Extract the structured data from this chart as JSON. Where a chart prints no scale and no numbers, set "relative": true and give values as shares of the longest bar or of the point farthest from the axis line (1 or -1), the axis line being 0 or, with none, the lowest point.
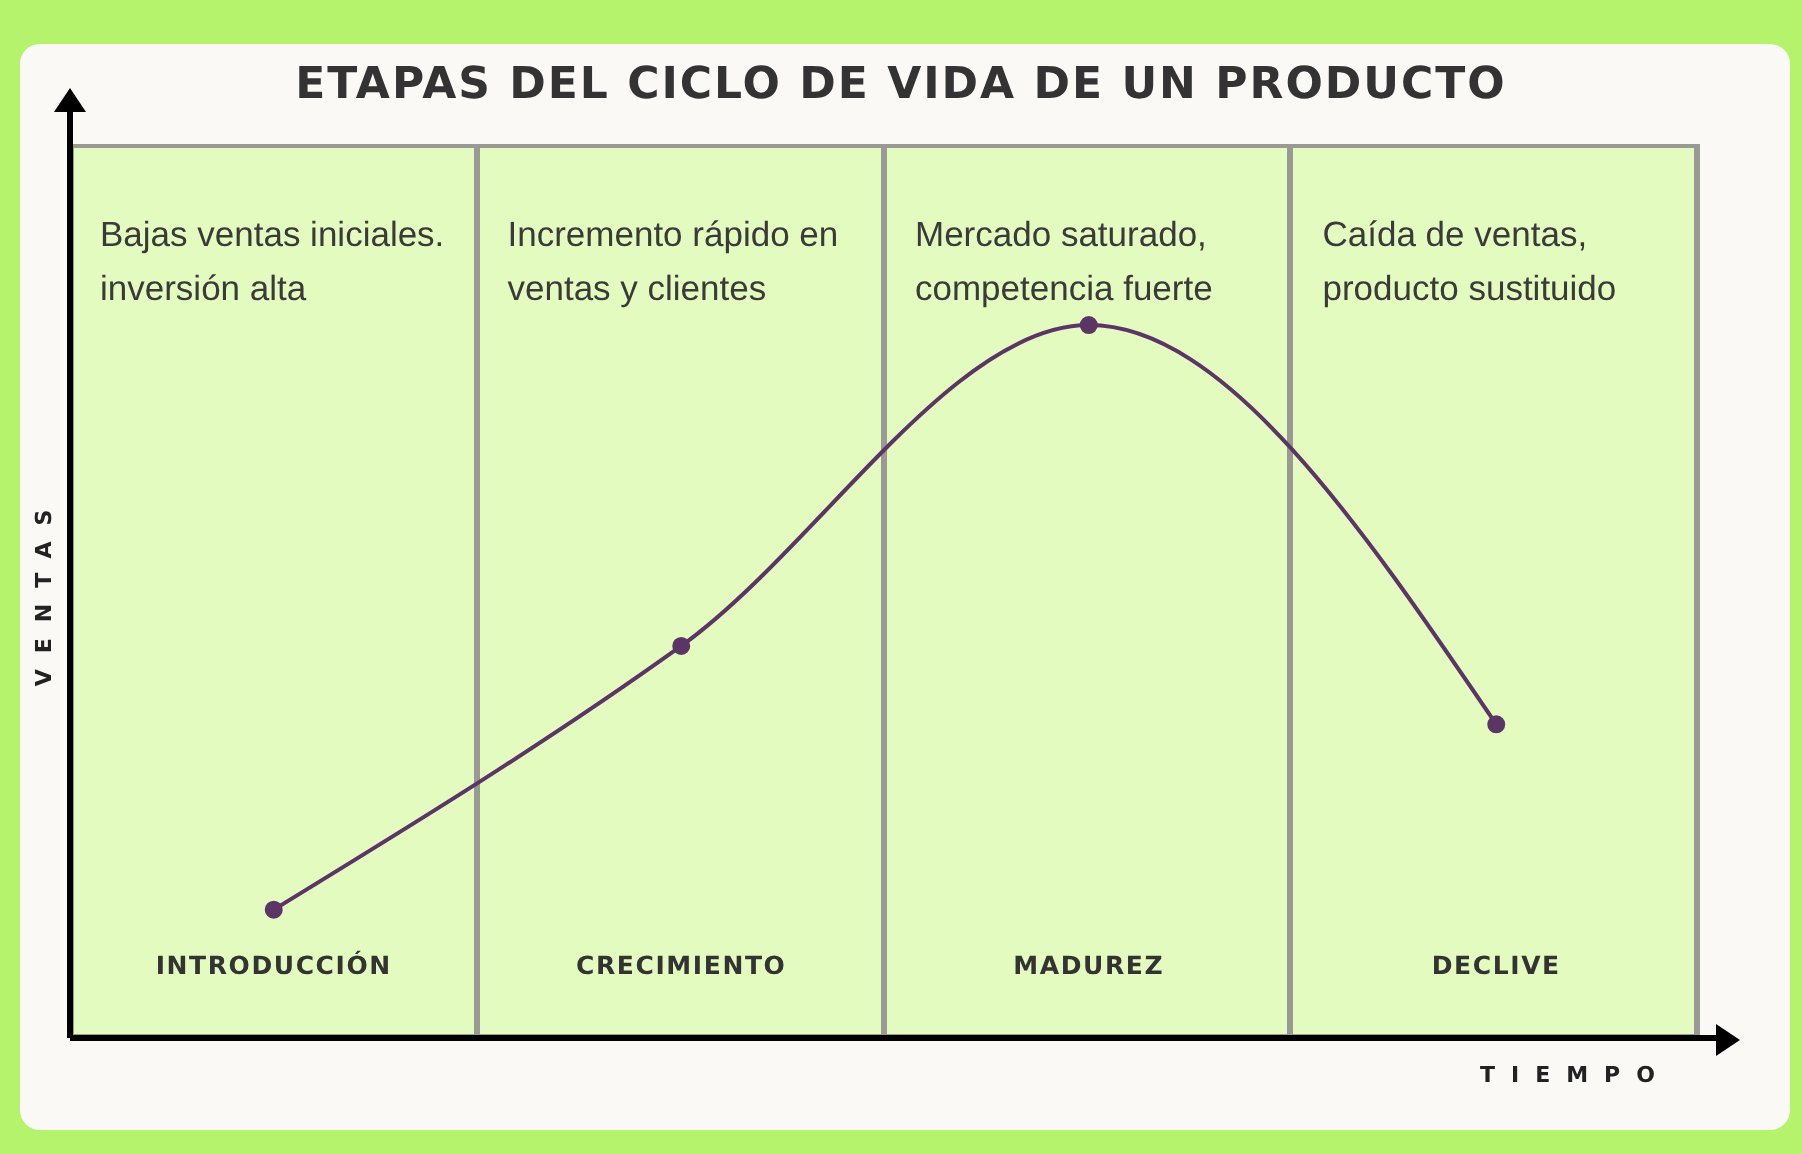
{
  "chart_data": {
    "type": "line",
    "title": "ETAPAS DEL CICLO DE VIDA DE UN PRODUCTO",
    "xlabel": "TIEMPO",
    "ylabel": "VENTAS",
    "categories": [
      "INTRODUCCIÓN",
      "CRECIMIENTO",
      "MADUREZ",
      "DECLIVE"
    ],
    "series": [
      {
        "color": "#5b3566",
        "values": [
          0.18,
          0.55,
          1,
          0.44
        ]
      }
    ],
    "relative": true,
    "marker": "circle",
    "line_style": "solid",
    "grid": false,
    "legend": false,
    "annotations": [
      "Bajas ventas iniciales.\ninversión alta",
      "Incremento rápido en\nventas y clientes",
      "Mercado saturado,\ncompetencia fuerte",
      "Caída de ventas,\nproducto sustituido"
    ]
  }
}
